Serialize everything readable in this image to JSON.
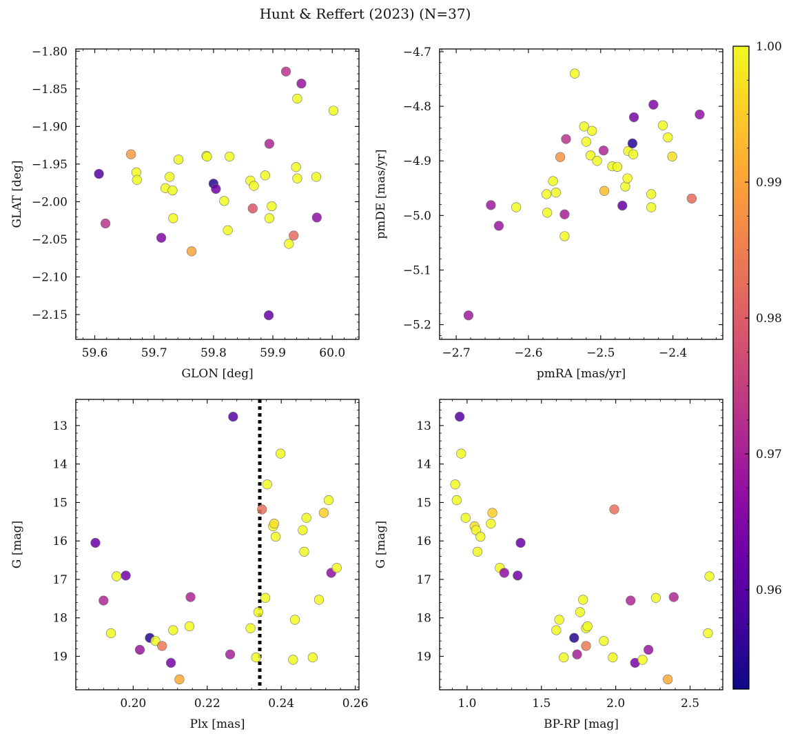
{
  "figure": {
    "title": "Hunt & Reffert (2023) (N=37)",
    "colorbar": {
      "label": "",
      "range": [
        0.9527,
        1.0
      ],
      "ticks": [
        0.96,
        0.97,
        0.98,
        0.99,
        1.0
      ],
      "tick_labels": [
        "0.96",
        "0.97",
        "0.98",
        "0.99",
        "1.00"
      ],
      "colormap": "plasma"
    }
  },
  "chart_data": [
    {
      "type": "scatter",
      "title": "",
      "xlabel": "GLON [deg]",
      "ylabel": "GLAT [deg]",
      "xlim": [
        59.568,
        60.045
      ],
      "ylim": [
        -2.183,
        -1.797
      ],
      "y_inverted": false,
      "xticks": [
        59.6,
        59.7,
        59.8,
        59.9,
        60.0
      ],
      "xtick_labels": [
        "59.6",
        "59.7",
        "59.8",
        "59.9",
        "60.0"
      ],
      "yticks": [
        -2.15,
        -2.1,
        -2.05,
        -2.0,
        -1.95,
        -1.9,
        -1.85,
        -1.8
      ],
      "ytick_labels": [
        "−2.15",
        "−2.10",
        "−2.05",
        "−2.00",
        "−1.95",
        "−1.90",
        "−1.85",
        "−1.80"
      ],
      "x": [
        59.607,
        59.618,
        59.661,
        59.67,
        59.671,
        59.712,
        59.719,
        59.726,
        59.731,
        59.732,
        59.741,
        59.763,
        59.788,
        59.789,
        59.8,
        59.804,
        59.818,
        59.824,
        59.827,
        59.862,
        59.866,
        59.868,
        59.887,
        59.893,
        59.894,
        59.894,
        59.898,
        59.922,
        59.927,
        59.935,
        59.939,
        59.941,
        59.941,
        59.948,
        59.973,
        59.974,
        60.002
      ],
      "y": [
        -1.963,
        -2.029,
        -1.937,
        -1.961,
        -1.971,
        -2.048,
        -1.982,
        -1.967,
        -1.985,
        -2.022,
        -1.944,
        -2.066,
        -1.939,
        -1.94,
        -1.976,
        -1.983,
        -1.999,
        -2.038,
        -1.94,
        -1.972,
        -2.009,
        -1.979,
        -1.965,
        -2.151,
        -1.923,
        -2.022,
        -2.006,
        -1.827,
        -2.056,
        -2.045,
        -1.954,
        -1.969,
        -1.863,
        -1.843,
        -1.967,
        -2.021,
        -1.879
      ],
      "color_values": [
        0.96,
        0.973,
        0.989,
        1.0,
        1.0,
        0.965,
        1.0,
        1.0,
        1.0,
        1.0,
        1.0,
        0.99,
        1.0,
        1.0,
        0.955,
        0.963,
        1.0,
        1.0,
        1.0,
        1.0,
        0.979,
        1.0,
        1.0,
        0.962,
        0.971,
        1.0,
        1.0,
        0.973,
        1.0,
        0.982,
        1.0,
        1.0,
        1.0,
        0.968,
        1.0,
        0.967,
        1.0
      ]
    },
    {
      "type": "scatter",
      "title": "",
      "xlabel": "pmRA [mas/yr]",
      "ylabel": "pmDE [mas/yr]",
      "xlim": [
        -2.723,
        -2.331
      ],
      "ylim": [
        -5.227,
        -4.695
      ],
      "y_inverted": false,
      "xticks": [
        -2.7,
        -2.6,
        -2.5,
        -2.4
      ],
      "xtick_labels": [
        "−2.7",
        "−2.6",
        "−2.5",
        "−2.4"
      ],
      "yticks": [
        -5.2,
        -5.1,
        -5.0,
        -4.9,
        -4.8,
        -4.7
      ],
      "ytick_labels": [
        "−5.2",
        "−5.1",
        "−5.0",
        "−4.9",
        "−4.8",
        "−4.7"
      ],
      "x": [
        -2.683,
        -2.652,
        -2.641,
        -2.617,
        -2.575,
        -2.574,
        -2.566,
        -2.562,
        -2.556,
        -2.55,
        -2.55,
        -2.548,
        -2.536,
        -2.523,
        -2.52,
        -2.514,
        -2.512,
        -2.505,
        -2.496,
        -2.495,
        -2.484,
        -2.477,
        -2.47,
        -2.466,
        -2.463,
        -2.462,
        -2.456,
        -2.455,
        -2.454,
        -2.43,
        -2.43,
        -2.427,
        -2.414,
        -2.407,
        -2.401,
        -2.374,
        -2.363
      ],
      "y": [
        -5.183,
        -4.981,
        -5.019,
        -4.985,
        -4.961,
        -4.995,
        -4.937,
        -4.958,
        -4.893,
        -4.998,
        -5.038,
        -4.86,
        -4.74,
        -4.837,
        -4.865,
        -4.89,
        -4.845,
        -4.9,
        -4.881,
        -4.955,
        -4.91,
        -4.911,
        -4.982,
        -4.947,
        -4.932,
        -4.882,
        -4.868,
        -4.888,
        -4.82,
        -4.961,
        -4.985,
        -4.797,
        -4.835,
        -4.857,
        -4.892,
        -4.969,
        -4.815
      ],
      "color_values": [
        0.969,
        0.969,
        0.968,
        1.0,
        1.0,
        1.0,
        1.0,
        1.0,
        0.988,
        0.97,
        1.0,
        0.973,
        1.0,
        1.0,
        1.0,
        1.0,
        1.0,
        1.0,
        0.971,
        0.993,
        1.0,
        1.0,
        0.962,
        1.0,
        1.0,
        1.0,
        0.955,
        1.0,
        0.964,
        1.0,
        1.0,
        0.965,
        1.0,
        1.0,
        0.997,
        0.982,
        0.967
      ]
    },
    {
      "type": "scatter",
      "title": "",
      "xlabel": "Plx [mas]",
      "ylabel": "G [mag]",
      "xlim": [
        0.1845,
        0.261
      ],
      "ylim": [
        19.87,
        12.32
      ],
      "y_inverted": true,
      "xticks": [
        0.2,
        0.22,
        0.24,
        0.26
      ],
      "xtick_labels": [
        "0.20",
        "0.22",
        "0.24",
        "0.26"
      ],
      "yticks": [
        13,
        14,
        15,
        16,
        17,
        18,
        19
      ],
      "ytick_labels": [
        "13",
        "14",
        "15",
        "16",
        "17",
        "18",
        "19"
      ],
      "reference_line": {
        "x": 0.2342,
        "style": "dotted",
        "color": "#000000"
      },
      "x": [
        0.1898,
        0.192,
        0.194,
        0.1955,
        0.198,
        0.2018,
        0.2045,
        0.206,
        0.2078,
        0.2102,
        0.2108,
        0.2125,
        0.2152,
        0.2155,
        0.2262,
        0.227,
        0.2317,
        0.2332,
        0.2338,
        0.2348,
        0.2357,
        0.2362,
        0.2378,
        0.2381,
        0.2385,
        0.2398,
        0.2432,
        0.2437,
        0.2458,
        0.2462,
        0.2468,
        0.2485,
        0.2502,
        0.2515,
        0.2528,
        0.2535,
        0.255
      ],
      "y": [
        16.05,
        17.55,
        18.4,
        16.92,
        16.9,
        18.83,
        18.52,
        18.6,
        18.73,
        19.17,
        18.32,
        19.6,
        18.22,
        17.46,
        18.95,
        12.77,
        18.27,
        19.03,
        17.85,
        15.18,
        17.48,
        14.53,
        15.62,
        15.55,
        15.89,
        13.73,
        19.09,
        18.05,
        15.72,
        16.28,
        15.4,
        19.03,
        17.53,
        15.27,
        14.94,
        16.83,
        16.7
      ],
      "color_values": [
        0.962,
        0.971,
        1.0,
        1.0,
        0.963,
        0.968,
        0.955,
        1.0,
        0.984,
        0.964,
        1.0,
        0.991,
        1.0,
        0.971,
        0.97,
        0.96,
        1.0,
        1.0,
        1.0,
        0.983,
        1.0,
        1.0,
        1.0,
        0.997,
        1.0,
        1.0,
        1.0,
        1.0,
        1.0,
        1.0,
        1.0,
        1.0,
        1.0,
        0.995,
        1.0,
        0.967,
        1.0
      ]
    },
    {
      "type": "scatter",
      "title": "",
      "xlabel": "BP-RP [mag]",
      "ylabel": "G [mag]",
      "xlim": [
        0.815,
        2.72
      ],
      "ylim": [
        19.87,
        12.32
      ],
      "y_inverted": true,
      "xticks": [
        1.0,
        1.5,
        2.0,
        2.5
      ],
      "xtick_labels": [
        "1.0",
        "1.5",
        "2.0",
        "2.5"
      ],
      "yticks": [
        13,
        14,
        15,
        16,
        17,
        18,
        19
      ],
      "ytick_labels": [
        "13",
        "14",
        "15",
        "16",
        "17",
        "18",
        "19"
      ],
      "x": [
        0.95,
        0.96,
        0.92,
        0.93,
        0.99,
        1.05,
        1.06,
        1.07,
        1.09,
        1.16,
        1.17,
        1.22,
        1.25,
        1.34,
        1.36,
        1.6,
        1.62,
        1.65,
        1.72,
        1.74,
        1.76,
        1.78,
        1.8,
        1.8,
        1.81,
        1.92,
        1.98,
        1.99,
        2.1,
        2.13,
        2.18,
        2.22,
        2.27,
        2.39,
        2.35,
        2.62,
        2.63
      ],
      "y": [
        12.77,
        13.73,
        14.53,
        14.94,
        15.4,
        15.62,
        15.72,
        16.28,
        15.89,
        15.55,
        15.27,
        16.7,
        16.83,
        16.9,
        16.05,
        18.32,
        18.05,
        19.03,
        18.52,
        18.95,
        17.85,
        17.53,
        18.73,
        18.27,
        18.22,
        18.6,
        19.03,
        15.18,
        17.55,
        19.17,
        19.09,
        18.83,
        17.48,
        17.46,
        19.6,
        18.4,
        16.92
      ],
      "color_values": [
        0.96,
        1.0,
        1.0,
        1.0,
        1.0,
        0.997,
        1.0,
        1.0,
        1.0,
        1.0,
        0.995,
        1.0,
        0.967,
        0.963,
        0.962,
        1.0,
        1.0,
        1.0,
        0.955,
        0.97,
        1.0,
        1.0,
        0.984,
        1.0,
        1.0,
        1.0,
        1.0,
        0.983,
        0.971,
        0.964,
        1.0,
        0.968,
        1.0,
        0.971,
        0.991,
        1.0,
        1.0
      ]
    }
  ]
}
